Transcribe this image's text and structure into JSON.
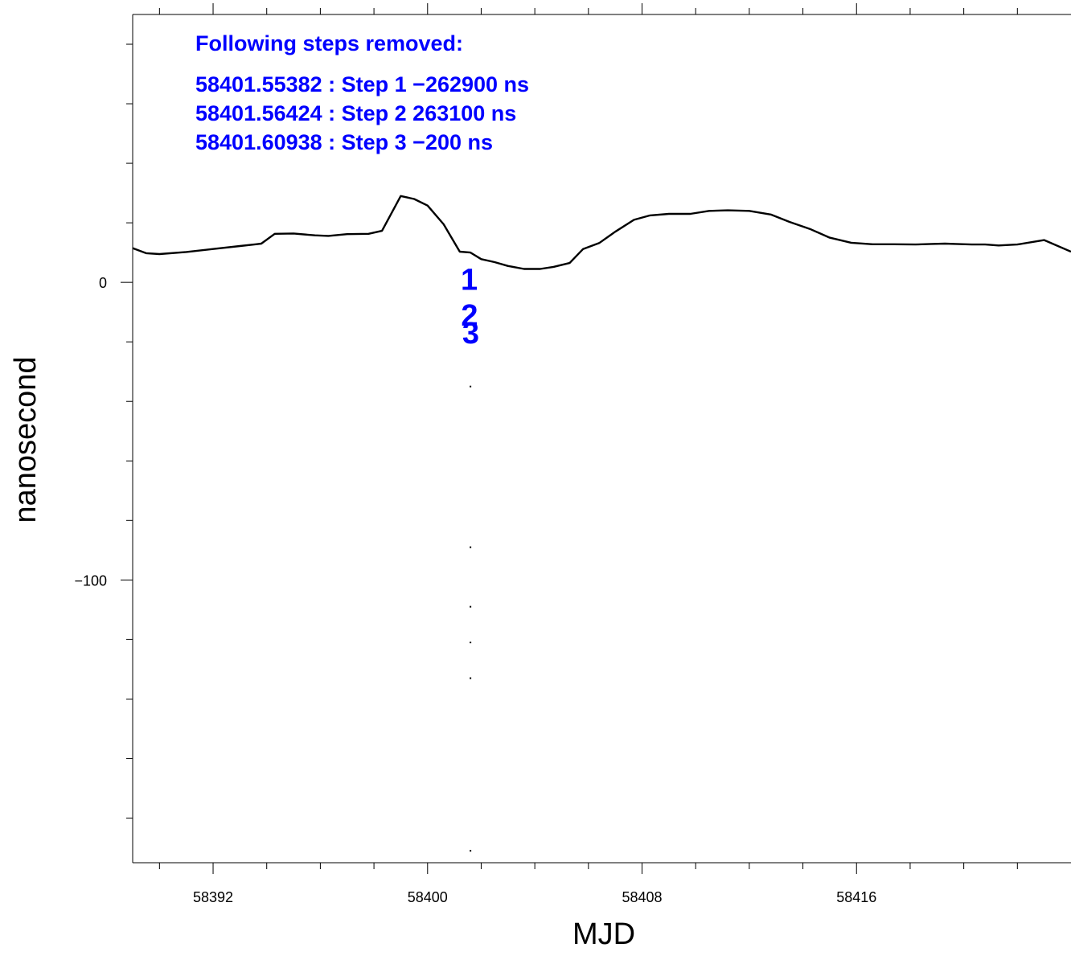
{
  "chart_data": {
    "type": "line",
    "title": "",
    "xlabel": "MJD",
    "ylabel": "nanosecond",
    "xlim": [
      58389.0,
      58424.0
    ],
    "ylim": [
      -195,
      90
    ],
    "x_ticks": [
      58390,
      58392,
      58394,
      58396,
      58398,
      58400,
      58402,
      58404,
      58406,
      58408,
      58410,
      58412,
      58414,
      58416,
      58418,
      58420,
      58422
    ],
    "x_tick_labels": [
      {
        "value": 58392,
        "label": "58392"
      },
      {
        "value": 58400,
        "label": "58400"
      },
      {
        "value": 58408,
        "label": "58408"
      },
      {
        "value": 58416,
        "label": "58416"
      }
    ],
    "y_ticks": [
      -180,
      -160,
      -140,
      -120,
      -100,
      -80,
      -60,
      -40,
      -20,
      0,
      20,
      40,
      60,
      80
    ],
    "y_tick_labels": [
      {
        "value": 0,
        "label": "0"
      },
      {
        "value": -100,
        "label": "−100"
      }
    ],
    "grid": false,
    "series": [
      {
        "color": "#000000",
        "x": [
          58389.0,
          58389.5,
          58390.0,
          58391.0,
          58392.0,
          58393.0,
          58393.6,
          58393.8,
          58394.3,
          58395.0,
          58395.8,
          58396.3,
          58397.0,
          58397.8,
          58398.3,
          58399.0,
          58399.5,
          58400.0,
          58400.6,
          58401.2,
          58401.6,
          58402.0,
          58402.5,
          58403.0,
          58403.6,
          58404.2,
          58404.7,
          58405.3,
          58405.8,
          58406.4,
          58407.0,
          58407.7,
          58408.3,
          58409.0,
          58409.8,
          58410.5,
          58411.2,
          58412.0,
          58412.8,
          58413.5,
          58414.3,
          58415.0,
          58415.8,
          58416.6,
          58417.4,
          58418.2,
          58418.8,
          58419.3,
          58419.7,
          58420.3,
          58420.8,
          58421.3,
          58422.0,
          58423.0,
          58424.0
        ],
        "y": [
          11.5,
          9.8,
          9.5,
          10.2,
          11.2,
          12.2,
          12.8,
          13.0,
          16.3,
          16.4,
          15.8,
          15.6,
          16.2,
          16.3,
          17.3,
          29.0,
          28.0,
          25.8,
          19.5,
          10.3,
          10.0,
          7.8,
          6.8,
          5.5,
          4.5,
          4.5,
          5.2,
          6.5,
          11.2,
          13.2,
          17.0,
          21.0,
          22.5,
          23.0,
          23.0,
          24.0,
          24.2,
          24.0,
          22.8,
          20.3,
          17.8,
          15.0,
          13.3,
          12.8,
          12.8,
          12.7,
          12.9,
          13.0,
          12.9,
          12.7,
          12.7,
          12.4,
          12.7,
          14.2,
          10.3
        ]
      }
    ],
    "step_markers": [
      {
        "label": "1",
        "x": 58401.55382,
        "y": 1
      },
      {
        "label": "2",
        "x": 58401.56424,
        "y": -11
      },
      {
        "label": "3",
        "x": 58401.60938,
        "y": -17
      }
    ],
    "marker_line_points": [
      {
        "x": 58401.6,
        "y": -35
      },
      {
        "x": 58401.6,
        "y": -89
      },
      {
        "x": 58401.6,
        "y": -109
      },
      {
        "x": 58401.6,
        "y": -121
      },
      {
        "x": 58401.6,
        "y": -133
      },
      {
        "x": 58401.6,
        "y": -191
      }
    ],
    "annotations": {
      "heading": "Following steps removed:",
      "lines": [
        "58401.55382 : Step 1 −262900 ns",
        "58401.56424 : Step 2 263100 ns",
        "58401.60938 : Step 3 −200 ns"
      ],
      "color": "#0000ff"
    }
  }
}
